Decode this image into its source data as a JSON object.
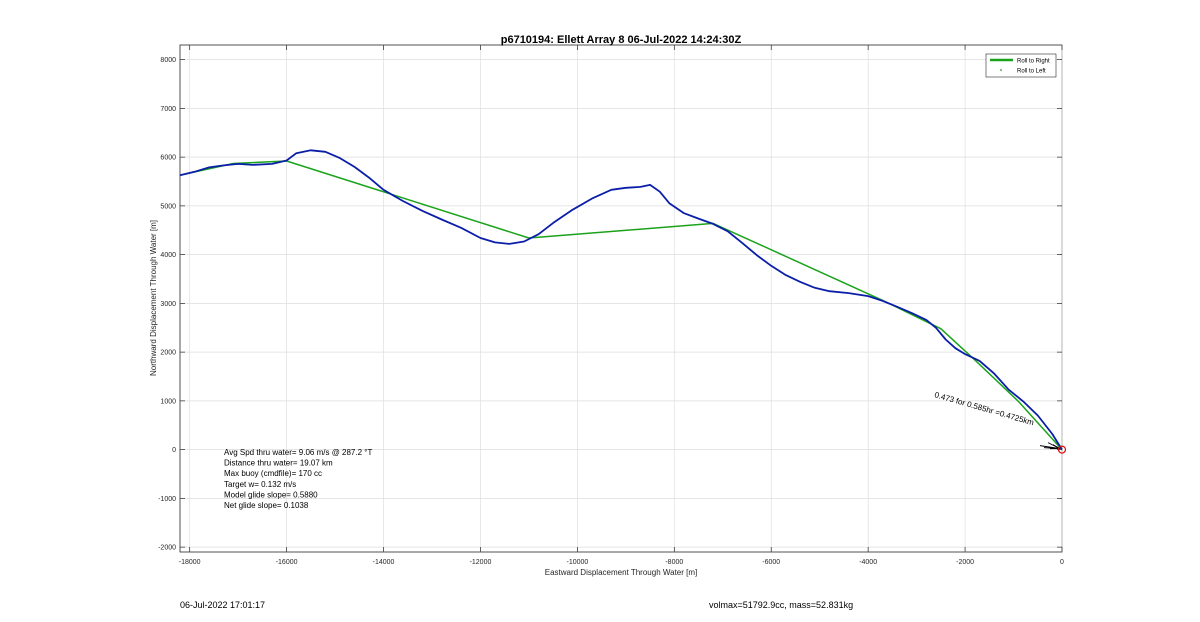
{
  "chart_data": {
    "type": "line",
    "title": "p6710194: Ellett Array 8 06-Jul-2022 14:24:30Z",
    "xlabel": "Eastward Displacement Through Water [m]",
    "ylabel": "Northward Displacement Through Water [m]",
    "xlim": [
      -18200,
      0
    ],
    "ylim": [
      -2100,
      8300
    ],
    "xticks": [
      -18000,
      -16000,
      -14000,
      -12000,
      -10000,
      -8000,
      -6000,
      -4000,
      -2000,
      0
    ],
    "yticks": [
      -2000,
      -1000,
      0,
      1000,
      2000,
      3000,
      4000,
      5000,
      6000,
      7000,
      8000
    ],
    "grid": true,
    "legend_position": "top-right",
    "legend": [
      {
        "label": "Roll to Right",
        "color": "#1aa31a",
        "style": "line"
      },
      {
        "label": "Roll to Left",
        "color": "#1aa31a",
        "style": "dot"
      }
    ],
    "series": [
      {
        "name": "Roll to Right",
        "color": "#1aa31a",
        "points": [
          [
            -18200,
            5630
          ],
          [
            -17100,
            5870
          ],
          [
            -16000,
            5920
          ],
          [
            -11000,
            4340
          ],
          [
            -7200,
            4640
          ],
          [
            -3700,
            3060
          ],
          [
            -2500,
            2480
          ],
          [
            -1800,
            1840
          ],
          [
            -900,
            990
          ],
          [
            0,
            0
          ]
        ]
      },
      {
        "color": "#0a1ea8",
        "points": [
          [
            -18200,
            5630
          ],
          [
            -17900,
            5700
          ],
          [
            -17600,
            5790
          ],
          [
            -17300,
            5830
          ],
          [
            -17000,
            5860
          ],
          [
            -16700,
            5840
          ],
          [
            -16300,
            5860
          ],
          [
            -16000,
            5930
          ],
          [
            -15800,
            6080
          ],
          [
            -15500,
            6140
          ],
          [
            -15200,
            6110
          ],
          [
            -14900,
            5980
          ],
          [
            -14600,
            5800
          ],
          [
            -14300,
            5580
          ],
          [
            -14000,
            5330
          ],
          [
            -13600,
            5100
          ],
          [
            -13200,
            4900
          ],
          [
            -12800,
            4720
          ],
          [
            -12400,
            4550
          ],
          [
            -12000,
            4340
          ],
          [
            -11700,
            4250
          ],
          [
            -11400,
            4220
          ],
          [
            -11100,
            4270
          ],
          [
            -10800,
            4420
          ],
          [
            -10500,
            4650
          ],
          [
            -10100,
            4920
          ],
          [
            -9700,
            5150
          ],
          [
            -9300,
            5330
          ],
          [
            -9000,
            5370
          ],
          [
            -8700,
            5390
          ],
          [
            -8500,
            5430
          ],
          [
            -8300,
            5290
          ],
          [
            -8100,
            5050
          ],
          [
            -7800,
            4850
          ],
          [
            -7500,
            4740
          ],
          [
            -7200,
            4630
          ],
          [
            -6900,
            4480
          ],
          [
            -6600,
            4240
          ],
          [
            -6300,
            3990
          ],
          [
            -6000,
            3770
          ],
          [
            -5700,
            3580
          ],
          [
            -5400,
            3440
          ],
          [
            -5100,
            3320
          ],
          [
            -4800,
            3250
          ],
          [
            -4400,
            3210
          ],
          [
            -4000,
            3150
          ],
          [
            -3700,
            3050
          ],
          [
            -3400,
            2930
          ],
          [
            -3100,
            2800
          ],
          [
            -2800,
            2660
          ],
          [
            -2600,
            2500
          ],
          [
            -2400,
            2260
          ],
          [
            -2200,
            2080
          ],
          [
            -2000,
            1960
          ],
          [
            -1700,
            1820
          ],
          [
            -1400,
            1560
          ],
          [
            -1100,
            1230
          ],
          [
            -800,
            990
          ],
          [
            -500,
            700
          ],
          [
            -200,
            320
          ],
          [
            0,
            0
          ]
        ]
      }
    ],
    "annotations": [
      "Avg Spd thru water=  9.06 m/s @ 287.2 °T",
      "Distance thru water= 19.07 km",
      "Max buoy (cmdfile)= 170 cc",
      "Target w= 0.132 m/s",
      "Model glide slope= 0.5880",
      "Net glide slope= 0.1038"
    ],
    "current_label": "0.473 for 0.585hr =0.4725km",
    "end_marker": [
      0,
      0
    ]
  },
  "footer": {
    "left": "06-Jul-2022 17:01:17",
    "right": "volmax=51792.9cc, mass=52.831kg"
  }
}
